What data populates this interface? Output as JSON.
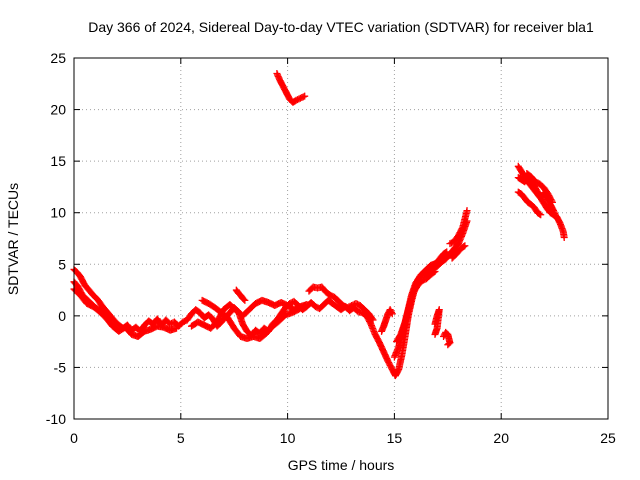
{
  "chart_data": {
    "type": "scatter",
    "title": "Day 366 of 2024, Sidereal Day-to-day VTEC variation (SDTVAR) for receiver bla1",
    "xlabel": "GPS time / hours",
    "ylabel": "SDTVAR / TECUs",
    "xlim": [
      0,
      25
    ],
    "ylim": [
      -10,
      25
    ],
    "xticks": [
      0,
      5,
      10,
      15,
      20,
      25
    ],
    "yticks": [
      -10,
      -5,
      0,
      5,
      10,
      15,
      20,
      25
    ],
    "grid": true,
    "marker": "+",
    "color": "#ff0000",
    "series": [
      {
        "name": "SDTVAR",
        "segments": [
          [
            [
              0.0,
              4.5
            ],
            [
              0.15,
              4.2
            ],
            [
              0.3,
              3.8
            ],
            [
              0.5,
              3.0
            ],
            [
              0.7,
              2.5
            ],
            [
              0.9,
              2.0
            ],
            [
              1.1,
              1.6
            ],
            [
              1.3,
              1.0
            ],
            [
              1.5,
              0.5
            ],
            [
              1.7,
              0.0
            ],
            [
              1.9,
              -0.5
            ],
            [
              2.1,
              -0.9
            ],
            [
              2.3,
              -1.2
            ],
            [
              2.5,
              -0.9
            ],
            [
              2.7,
              -1.4
            ],
            [
              2.9,
              -1.1
            ],
            [
              3.1,
              -1.5
            ],
            [
              3.3,
              -0.9
            ],
            [
              3.5,
              -0.5
            ],
            [
              3.7,
              -0.8
            ],
            [
              3.9,
              -0.3
            ],
            [
              4.1,
              -0.9
            ],
            [
              4.3,
              -0.4
            ],
            [
              4.5,
              -0.8
            ],
            [
              4.7,
              -0.6
            ],
            [
              4.9,
              -1.0
            ],
            [
              5.1,
              -0.6
            ],
            [
              5.3,
              -0.4
            ],
            [
              5.5,
              0.2
            ],
            [
              5.7,
              0.6
            ],
            [
              5.9,
              0.3
            ],
            [
              6.1,
              -0.2
            ],
            [
              6.3,
              0.1
            ],
            [
              6.5,
              -0.3
            ],
            [
              6.7,
              -1.0
            ],
            [
              6.9,
              -0.6
            ],
            [
              7.1,
              -0.1
            ],
            [
              7.3,
              0.3
            ],
            [
              7.5,
              0.8
            ],
            [
              7.7,
              0.4
            ],
            [
              7.9,
              -0.8
            ],
            [
              8.1,
              -1.5
            ],
            [
              8.3,
              -1.9
            ],
            [
              8.5,
              -1.4
            ],
            [
              8.7,
              -1.7
            ],
            [
              8.9,
              -1.2
            ],
            [
              9.1,
              -1.5
            ],
            [
              9.3,
              -0.8
            ],
            [
              9.5,
              -0.4
            ],
            [
              9.7,
              0.2
            ],
            [
              9.9,
              0.8
            ],
            [
              10.1,
              1.2
            ],
            [
              10.3,
              1.4
            ],
            [
              10.5,
              1.0
            ],
            [
              10.7,
              0.6
            ],
            [
              10.9,
              0.9
            ],
            [
              11.1,
              1.3
            ],
            [
              11.3,
              0.9
            ],
            [
              11.5,
              0.7
            ],
            [
              11.7,
              1.1
            ],
            [
              11.9,
              1.5
            ],
            [
              12.1,
              1.2
            ],
            [
              12.3,
              0.9
            ],
            [
              12.5,
              0.6
            ],
            [
              12.7,
              0.9
            ],
            [
              12.9,
              0.5
            ],
            [
              13.1,
              0.8
            ],
            [
              13.3,
              0.4
            ],
            [
              13.5,
              0.3
            ],
            [
              13.7,
              0.0
            ],
            [
              13.9,
              -0.8
            ],
            [
              14.1,
              -1.8
            ],
            [
              14.3,
              -2.6
            ],
            [
              14.5,
              -3.5
            ],
            [
              14.7,
              -4.4
            ],
            [
              14.9,
              -5.2
            ],
            [
              15.05,
              -5.8
            ],
            [
              15.2,
              -5.2
            ],
            [
              15.35,
              -3.8
            ],
            [
              15.5,
              -2.0
            ],
            [
              15.65,
              0.0
            ],
            [
              15.8,
              1.4
            ],
            [
              15.95,
              2.6
            ],
            [
              16.1,
              3.5
            ],
            [
              16.25,
              4.0
            ],
            [
              16.4,
              4.3
            ],
            [
              16.55,
              4.6
            ],
            [
              16.7,
              4.9
            ],
            [
              16.85,
              5.0
            ],
            [
              17.0,
              5.2
            ],
            [
              17.15,
              5.6
            ],
            [
              17.3,
              6.0
            ],
            [
              17.45,
              6.2
            ]
          ],
          [
            [
              0.0,
              3.3
            ],
            [
              0.2,
              2.8
            ],
            [
              0.4,
              2.0
            ],
            [
              0.6,
              1.6
            ],
            [
              0.8,
              1.2
            ],
            [
              1.0,
              0.8
            ],
            [
              1.2,
              0.6
            ],
            [
              1.4,
              0.3
            ]
          ],
          [
            [
              0.0,
              2.6
            ],
            [
              0.3,
              2.0
            ],
            [
              0.6,
              1.2
            ],
            [
              0.9,
              0.9
            ],
            [
              1.2,
              0.4
            ],
            [
              1.5,
              -0.2
            ],
            [
              1.8,
              -1.0
            ],
            [
              2.1,
              -1.5
            ],
            [
              2.4,
              -1.1
            ],
            [
              2.7,
              -1.8
            ],
            [
              3.0,
              -2.0
            ],
            [
              3.3,
              -1.5
            ],
            [
              3.6,
              -1.3
            ],
            [
              3.9,
              -1.0
            ],
            [
              4.2,
              -1.1
            ],
            [
              4.5,
              -1.4
            ],
            [
              4.8,
              -1.2
            ]
          ],
          [
            [
              5.5,
              -1.0
            ],
            [
              5.8,
              -0.6
            ],
            [
              6.1,
              -0.9
            ],
            [
              6.4,
              -1.2
            ],
            [
              6.7,
              -0.6
            ],
            [
              7.0,
              0.6
            ],
            [
              7.3,
              1.1
            ],
            [
              7.6,
              0.5
            ],
            [
              7.9,
              0.0
            ],
            [
              8.2,
              0.6
            ],
            [
              8.5,
              1.2
            ],
            [
              8.8,
              1.5
            ],
            [
              9.1,
              1.3
            ],
            [
              9.4,
              1.0
            ],
            [
              9.7,
              1.3
            ],
            [
              10.0,
              1.0
            ],
            [
              10.3,
              0.6
            ],
            [
              10.6,
              0.9
            ],
            [
              10.9,
              1.1
            ]
          ],
          [
            [
              6.0,
              1.5
            ],
            [
              6.3,
              1.2
            ],
            [
              6.6,
              0.8
            ],
            [
              6.9,
              0.3
            ],
            [
              7.2,
              -0.2
            ],
            [
              7.5,
              -1.2
            ],
            [
              7.8,
              -2.0
            ],
            [
              8.1,
              -2.2
            ],
            [
              8.4,
              -2.0
            ],
            [
              8.7,
              -2.2
            ],
            [
              9.0,
              -1.7
            ],
            [
              9.3,
              -1.0
            ],
            [
              9.6,
              -0.5
            ],
            [
              9.9,
              0.1
            ],
            [
              10.2,
              0.3
            ],
            [
              10.5,
              0.6
            ],
            [
              10.8,
              1.0
            ]
          ],
          [
            [
              7.6,
              2.5
            ],
            [
              7.7,
              2.2
            ],
            [
              7.8,
              2.0
            ],
            [
              7.9,
              1.7
            ],
            [
              8.0,
              1.5
            ]
          ],
          [
            [
              11.0,
              2.4
            ],
            [
              11.2,
              2.8
            ],
            [
              11.4,
              2.7
            ],
            [
              11.6,
              2.8
            ],
            [
              11.8,
              2.3
            ],
            [
              12.0,
              2.0
            ],
            [
              12.2,
              1.8
            ],
            [
              12.4,
              1.4
            ],
            [
              12.6,
              1.0
            ],
            [
              12.8,
              0.8
            ],
            [
              13.0,
              1.0
            ],
            [
              13.2,
              1.2
            ],
            [
              13.4,
              1.0
            ],
            [
              13.6,
              0.6
            ],
            [
              13.8,
              0.2
            ],
            [
              14.0,
              -0.4
            ]
          ],
          [
            [
              14.4,
              -1.5
            ],
            [
              14.5,
              -1.0
            ],
            [
              14.6,
              -0.4
            ],
            [
              14.7,
              0.2
            ],
            [
              14.8,
              0.6
            ],
            [
              14.9,
              0.2
            ]
          ],
          [
            [
              15.0,
              -4.0
            ],
            [
              15.2,
              -3.0
            ],
            [
              15.4,
              -1.5
            ],
            [
              15.6,
              0.2
            ],
            [
              15.8,
              2.0
            ],
            [
              16.0,
              3.2
            ],
            [
              16.2,
              3.8
            ],
            [
              16.4,
              4.0
            ],
            [
              16.6,
              4.2
            ],
            [
              16.8,
              4.5
            ],
            [
              17.0,
              4.8
            ],
            [
              17.2,
              5.2
            ],
            [
              17.4,
              5.5
            ],
            [
              17.6,
              6.0
            ],
            [
              17.8,
              6.5
            ],
            [
              18.0,
              7.0
            ],
            [
              18.2,
              8.0
            ],
            [
              18.4,
              9.2
            ]
          ],
          [
            [
              15.1,
              -2.5
            ],
            [
              15.3,
              -1.8
            ],
            [
              15.5,
              -0.6
            ],
            [
              15.7,
              1.0
            ],
            [
              15.9,
              2.3
            ],
            [
              16.1,
              3.0
            ],
            [
              16.3,
              3.4
            ],
            [
              16.5,
              3.6
            ],
            [
              16.7,
              4.0
            ],
            [
              16.9,
              4.3
            ]
          ],
          [
            [
              16.9,
              -0.8
            ],
            [
              17.0,
              0.0
            ],
            [
              17.1,
              0.6
            ],
            [
              17.0,
              -1.2
            ],
            [
              16.9,
              -1.8
            ]
          ],
          [
            [
              17.3,
              -2.0
            ],
            [
              17.4,
              -1.6
            ],
            [
              17.5,
              -1.8
            ],
            [
              17.6,
              -2.6
            ],
            [
              17.5,
              -2.8
            ]
          ],
          [
            [
              17.6,
              7.0
            ],
            [
              17.8,
              7.2
            ],
            [
              18.0,
              7.8
            ],
            [
              18.2,
              8.6
            ],
            [
              18.4,
              10.2
            ]
          ],
          [
            [
              17.7,
              5.6
            ],
            [
              17.9,
              6.0
            ],
            [
              18.1,
              6.5
            ],
            [
              18.3,
              6.8
            ]
          ],
          [
            [
              9.5,
              23.5
            ],
            [
              9.65,
              22.8
            ],
            [
              9.8,
              22.2
            ],
            [
              9.95,
              21.6
            ],
            [
              10.1,
              21.0
            ],
            [
              10.25,
              20.7
            ],
            [
              10.4,
              20.9
            ],
            [
              10.6,
              21.1
            ],
            [
              10.8,
              21.3
            ]
          ],
          [
            [
              20.8,
              14.5
            ],
            [
              20.95,
              14.0
            ],
            [
              21.1,
              13.4
            ],
            [
              21.25,
              13.0
            ],
            [
              21.4,
              12.6
            ],
            [
              21.55,
              12.2
            ],
            [
              21.7,
              11.8
            ],
            [
              21.85,
              11.4
            ],
            [
              22.0,
              10.9
            ],
            [
              22.15,
              10.4
            ],
            [
              22.3,
              10.0
            ],
            [
              22.45,
              9.8
            ],
            [
              22.6,
              9.6
            ],
            [
              22.75,
              9.0
            ],
            [
              22.9,
              8.2
            ],
            [
              22.95,
              7.6
            ]
          ],
          [
            [
              20.8,
              13.4
            ],
            [
              20.95,
              13.2
            ],
            [
              21.1,
              13.0
            ],
            [
              21.25,
              13.4
            ],
            [
              21.4,
              13.0
            ],
            [
              21.55,
              12.6
            ],
            [
              21.7,
              12.0
            ],
            [
              21.85,
              11.6
            ],
            [
              22.0,
              11.8
            ],
            [
              22.15,
              11.4
            ],
            [
              22.3,
              10.8
            ],
            [
              22.45,
              10.2
            ],
            [
              22.6,
              9.5
            ]
          ],
          [
            [
              20.8,
              12.0
            ],
            [
              20.95,
              11.8
            ],
            [
              21.1,
              11.4
            ],
            [
              21.25,
              11.0
            ],
            [
              21.4,
              10.8
            ],
            [
              21.55,
              10.5
            ],
            [
              21.7,
              10.0
            ],
            [
              21.85,
              9.8
            ]
          ],
          [
            [
              21.2,
              13.8
            ],
            [
              21.4,
              13.5
            ],
            [
              21.6,
              13.0
            ],
            [
              21.8,
              12.8
            ],
            [
              22.0,
              12.4
            ],
            [
              22.2,
              11.8
            ],
            [
              22.4,
              11.0
            ]
          ]
        ]
      }
    ]
  }
}
